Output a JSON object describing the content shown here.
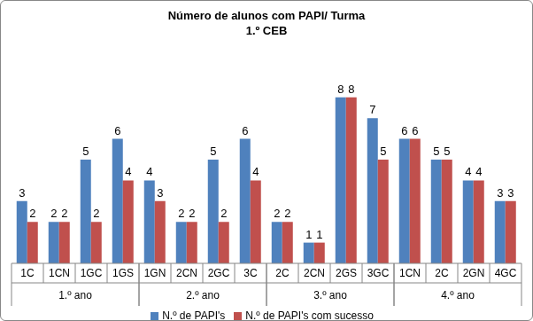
{
  "chart_data": {
    "type": "bar",
    "title": "Número de alunos com PAPI/ Turma",
    "subtitle": "1.º CEB",
    "categories": [
      "1C",
      "1CN",
      "1GC",
      "1GS",
      "1GN",
      "2CN",
      "2GC",
      "3C",
      "2C",
      "2CN",
      "2GS",
      "3GC",
      "1CN",
      "2C",
      "2GN",
      "4GC"
    ],
    "category_groups": [
      "1.º ano",
      "1.º ano",
      "1.º ano",
      "1.º ano",
      "2.º ano",
      "2.º ano",
      "2.º ano",
      "2.º ano",
      "3.º ano",
      "3.º ano",
      "3.º ano",
      "3.º ano",
      "4.º ano",
      "4.º ano",
      "4.º ano",
      "4.º ano"
    ],
    "series": [
      {
        "name": "N.º de PAPI's",
        "color": "#4f81bd",
        "values": [
          3,
          2,
          5,
          6,
          4,
          2,
          5,
          6,
          2,
          1,
          8,
          7,
          6,
          5,
          4,
          3
        ]
      },
      {
        "name": "N.º de PAPI's com sucesso",
        "color": "#c0504d",
        "values": [
          2,
          2,
          2,
          4,
          3,
          2,
          2,
          4,
          2,
          1,
          8,
          5,
          6,
          5,
          4,
          3
        ]
      }
    ],
    "ylim": [
      0,
      10
    ],
    "tick_labels": "x",
    "data_labels": true,
    "grid": false,
    "legend": "bottom"
  }
}
